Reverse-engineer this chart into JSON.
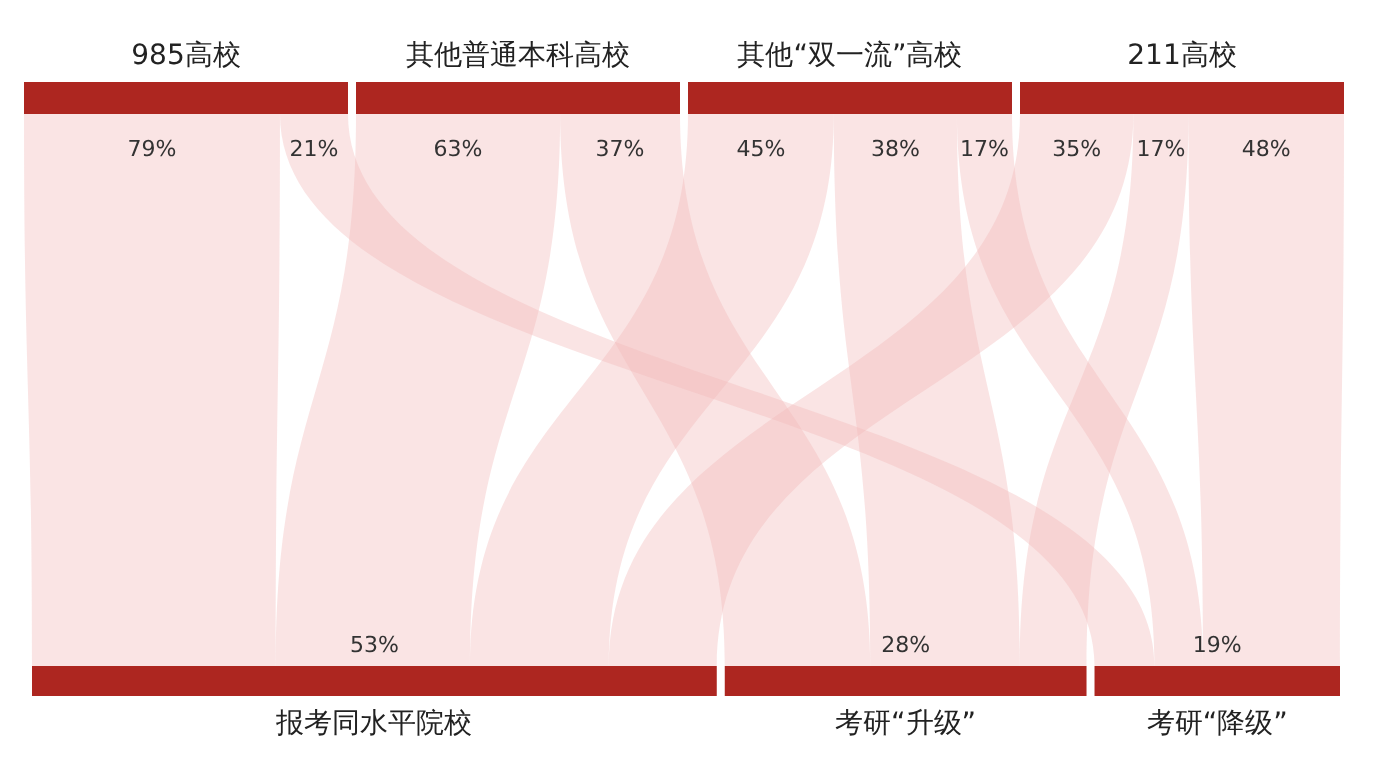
{
  "chart_data": {
    "type": "other",
    "categories": [
      "985高校",
      "其他普通本科高校",
      "其他“双一流”高校",
      "211高校"
    ],
    "series": [
      {
        "name": "报考同水平院校",
        "color": "#f3b8b8",
        "values": [
          79,
          63,
          45,
          35
        ],
        "value_labels": [
          "79%",
          "63%",
          "45%",
          "35%"
        ]
      },
      {
        "name": "考研“升级”",
        "color": "#f3b8b8",
        "values": [
          null,
          37,
          38,
          17
        ],
        "value_labels": [
          null,
          "37%",
          "38%",
          "17%"
        ]
      },
      {
        "name": "考研“降级”",
        "color": "#f3b8b8",
        "values": [
          21,
          null,
          17,
          48
        ],
        "value_labels": [
          "21%",
          null,
          "17%",
          "48%"
        ]
      }
    ],
    "totals": [
      "53%",
      "28%",
      "19%"
    ],
    "colors": [
      "#ad2620",
      "#ad2620",
      "#ad2620",
      "#ad2620",
      "#ad2620",
      "#ad2620",
      "#ad2620"
    ]
  }
}
